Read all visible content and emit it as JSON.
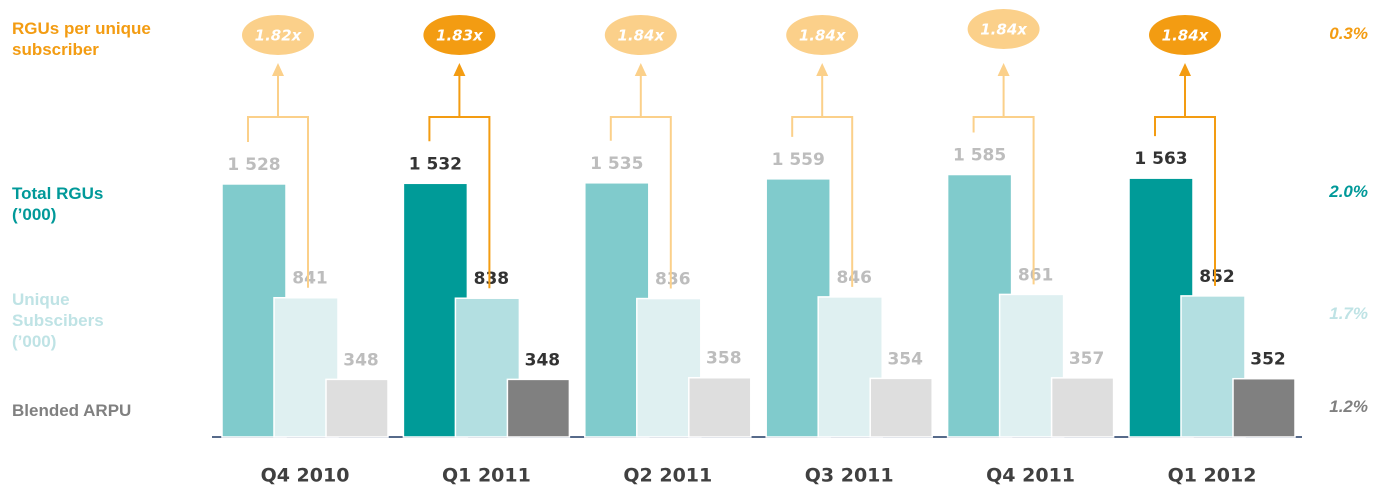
{
  "chart_data": {
    "type": "bar",
    "categories": [
      "Q4 2010",
      "Q1 2011",
      "Q2 2011",
      "Q3 2011",
      "Q4 2011",
      "Q1 2012"
    ],
    "series": [
      {
        "name": "Total RGUs (’000)",
        "name_color": "#009999",
        "change": "2.0%",
        "values": [
          1528,
          1532,
          1535,
          1559,
          1585,
          1563
        ],
        "value_labels": [
          "1 528",
          "1 532",
          "1 535",
          "1 559",
          "1 585",
          "1 563"
        ],
        "colors": [
          "#80cbcc",
          "#009b98",
          "#80cbcc",
          "#80cbcc",
          "#80cbcc",
          "#009b98"
        ],
        "label_colors": [
          "#bdbdbd",
          "#333333",
          "#bdbdbd",
          "#bdbdbd",
          "#bdbdbd",
          "#333333"
        ]
      },
      {
        "name": "Unique Subscibers (’000)",
        "name_color": "#bfe3e5",
        "change": "1.7%",
        "values": [
          841,
          838,
          836,
          846,
          861,
          852
        ],
        "colors": [
          "#dff0f1",
          "#b3dfe1",
          "#dff0f1",
          "#dff0f1",
          "#dff0f1",
          "#b3dfe1"
        ],
        "label_colors": [
          "#bdbdbd",
          "#333333",
          "#bdbdbd",
          "#bdbdbd",
          "#bdbdbd",
          "#333333"
        ]
      },
      {
        "name": "Blended ARPU",
        "name_color": "#808080",
        "change": "1.2%",
        "values": [
          348,
          348,
          358,
          354,
          357,
          352
        ],
        "colors": [
          "#dedede",
          "#808080",
          "#dedede",
          "#dedede",
          "#dedede",
          "#808080"
        ],
        "label_colors": [
          "#bdbdbd",
          "#333333",
          "#bdbdbd",
          "#bdbdbd",
          "#bdbdbd",
          "#333333"
        ]
      },
      {
        "name": "RGUs per unique subscriber",
        "name_color": "#f39c12",
        "change": "0.3%",
        "values": [
          1.82,
          1.83,
          1.84,
          1.84,
          1.84,
          1.84
        ],
        "value_labels": [
          "1.82x",
          "1.83x",
          "1.84x",
          "1.84x",
          "1.84x",
          "1.84x"
        ],
        "colors": [
          "#fbd08a",
          "#f39c12",
          "#fbd08a",
          "#fbd08a",
          "#fbd08a",
          "#f39c12"
        ]
      }
    ]
  }
}
